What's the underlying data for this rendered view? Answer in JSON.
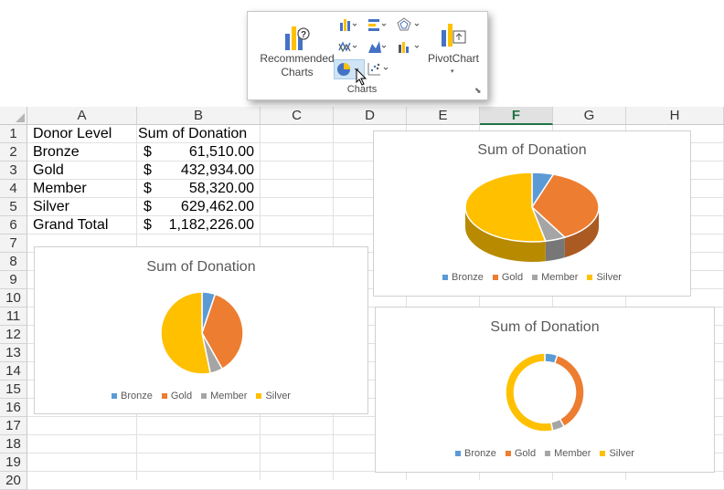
{
  "ribbon": {
    "recommended_label_1": "Recommended",
    "recommended_label_2": "Charts",
    "pivot_label": "PivotChart",
    "group_label": "Charts",
    "icons": [
      "column-chart-icon",
      "hierarchy-chart-icon",
      "radar-chart-icon",
      "line-chart-icon",
      "statistic-chart-icon",
      "combo-chart-icon",
      "pie-chart-icon",
      "scatter-chart-icon",
      "pivotchart-icon",
      "recommended-charts-icon"
    ]
  },
  "sheet": {
    "columns": [
      "A",
      "B",
      "C",
      "D",
      "E",
      "F",
      "G",
      "H"
    ],
    "selected_column": "F",
    "rows": [
      "1",
      "2",
      "3",
      "4",
      "5",
      "6",
      "7",
      "8",
      "9",
      "10",
      "11",
      "12",
      "13",
      "14",
      "15",
      "16",
      "17",
      "18",
      "19",
      "20"
    ],
    "header": {
      "a": "Donor Level",
      "b": "Sum of Donation"
    },
    "data": [
      {
        "level": "Bronze",
        "currency": "$",
        "amount": "61,510.00"
      },
      {
        "level": "Gold",
        "currency": "$",
        "amount": "432,934.00"
      },
      {
        "level": "Member",
        "currency": "$",
        "amount": "58,320.00"
      },
      {
        "level": "Silver",
        "currency": "$",
        "amount": "629,462.00"
      },
      {
        "level": "Grand Total",
        "currency": "$",
        "amount": "1,182,226.00"
      }
    ]
  },
  "colors": {
    "bronze": "#5b9bd5",
    "gold": "#ed7d31",
    "member": "#a5a5a5",
    "silver": "#ffc000"
  },
  "chart_data": [
    {
      "type": "pie",
      "title": "Sum of Donation",
      "variant": "3d-pie",
      "categories": [
        "Bronze",
        "Gold",
        "Member",
        "Silver"
      ],
      "values": [
        61510,
        432934,
        58320,
        629462
      ],
      "legend": "bottom"
    },
    {
      "type": "pie",
      "title": "Sum of Donation",
      "variant": "pie",
      "categories": [
        "Bronze",
        "Gold",
        "Member",
        "Silver"
      ],
      "values": [
        61510,
        432934,
        58320,
        629462
      ],
      "legend": "bottom"
    },
    {
      "type": "pie",
      "title": "Sum of Donation",
      "variant": "doughnut",
      "categories": [
        "Bronze",
        "Gold",
        "Member",
        "Silver"
      ],
      "values": [
        61510,
        432934,
        58320,
        629462
      ],
      "legend": "bottom"
    }
  ]
}
